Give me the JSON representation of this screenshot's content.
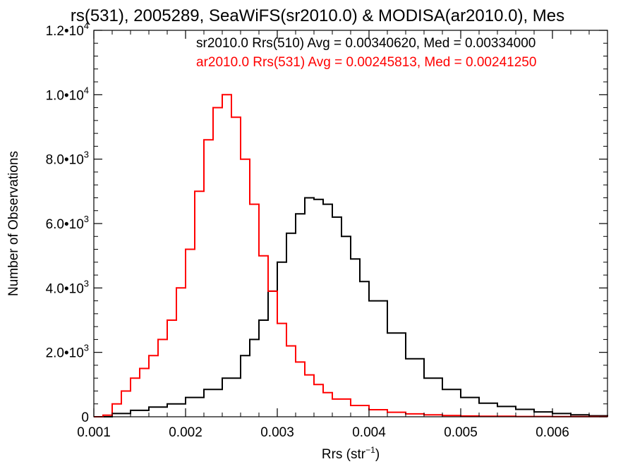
{
  "chart_data": {
    "type": "line",
    "title": "rs(531), 2005289, SeaWiFS(sr2010.0) & MODISA(ar2010.0), Mes",
    "xlabel": "Rrs (str",
    "xlabel_sup": "−1",
    "xlabel_tail": ")",
    "ylabel": "Number of Observations",
    "xlim": [
      0.001,
      0.0066
    ],
    "ylim": [
      0,
      12000
    ],
    "x_ticks": [
      {
        "value": 0.001,
        "label": "0.001"
      },
      {
        "value": 0.002,
        "label": "0.002"
      },
      {
        "value": 0.003,
        "label": "0.003"
      },
      {
        "value": 0.004,
        "label": "0.004"
      },
      {
        "value": 0.005,
        "label": "0.005"
      },
      {
        "value": 0.006,
        "label": "0.006"
      }
    ],
    "y_ticks": [
      {
        "value": 0,
        "label": "0",
        "sup": ""
      },
      {
        "value": 2000,
        "label": "2.0•10",
        "sup": "3"
      },
      {
        "value": 4000,
        "label": "4.0•10",
        "sup": "3"
      },
      {
        "value": 6000,
        "label": "6.0•10",
        "sup": "3"
      },
      {
        "value": 8000,
        "label": "8.0•10",
        "sup": "3"
      },
      {
        "value": 10000,
        "label": "1.0•10",
        "sup": "4"
      },
      {
        "value": 12000,
        "label": "1.2•10",
        "sup": "4"
      }
    ],
    "grid": false,
    "legend_position": "top-right",
    "legend": [
      {
        "text": "sr2010.0 Rrs(510) Avg = 0.00340620, Med = 0.00334000",
        "color": "#000000"
      },
      {
        "text": "ar2010.0 Rrs(531) Avg = 0.00245813, Med = 0.00241250",
        "color": "#ff0000"
      }
    ],
    "series": [
      {
        "color": "#000000",
        "x": [
          0.001,
          0.0012,
          0.0014,
          0.0016,
          0.0018,
          0.002,
          0.0022,
          0.0024,
          0.0026,
          0.0027,
          0.0028,
          0.0029,
          0.003,
          0.0031,
          0.0032,
          0.0033,
          0.0034,
          0.0035,
          0.0036,
          0.0037,
          0.0038,
          0.0039,
          0.004,
          0.0042,
          0.0044,
          0.0046,
          0.0048,
          0.005,
          0.0052,
          0.0054,
          0.0056,
          0.0058,
          0.006,
          0.0062,
          0.0064,
          0.0066
        ],
        "y": [
          0,
          100,
          200,
          300,
          400,
          600,
          850,
          1200,
          1900,
          2400,
          3000,
          3900,
          4800,
          5700,
          6300,
          6800,
          6750,
          6600,
          6200,
          5600,
          4900,
          4200,
          3600,
          2600,
          1800,
          1200,
          850,
          600,
          420,
          320,
          230,
          150,
          100,
          60,
          30,
          10
        ]
      },
      {
        "color": "#ff0000",
        "x": [
          0.001,
          0.0011,
          0.0012,
          0.0013,
          0.0014,
          0.0015,
          0.0016,
          0.0017,
          0.0018,
          0.0019,
          0.002,
          0.0021,
          0.0022,
          0.0023,
          0.0024,
          0.0025,
          0.0026,
          0.0027,
          0.0028,
          0.0029,
          0.003,
          0.0031,
          0.0032,
          0.0033,
          0.0034,
          0.0035,
          0.0036,
          0.0038,
          0.004,
          0.0042,
          0.0044,
          0.0046,
          0.0048,
          0.005,
          0.0052,
          0.0056,
          0.006,
          0.0066
        ],
        "y": [
          0,
          50,
          400,
          800,
          1200,
          1500,
          1900,
          2400,
          3000,
          4000,
          5200,
          7000,
          8600,
          9600,
          10000,
          9300,
          8000,
          6600,
          5000,
          3900,
          2900,
          2200,
          1700,
          1300,
          1000,
          750,
          550,
          350,
          220,
          140,
          90,
          60,
          40,
          25,
          15,
          8,
          4,
          0
        ]
      }
    ]
  }
}
